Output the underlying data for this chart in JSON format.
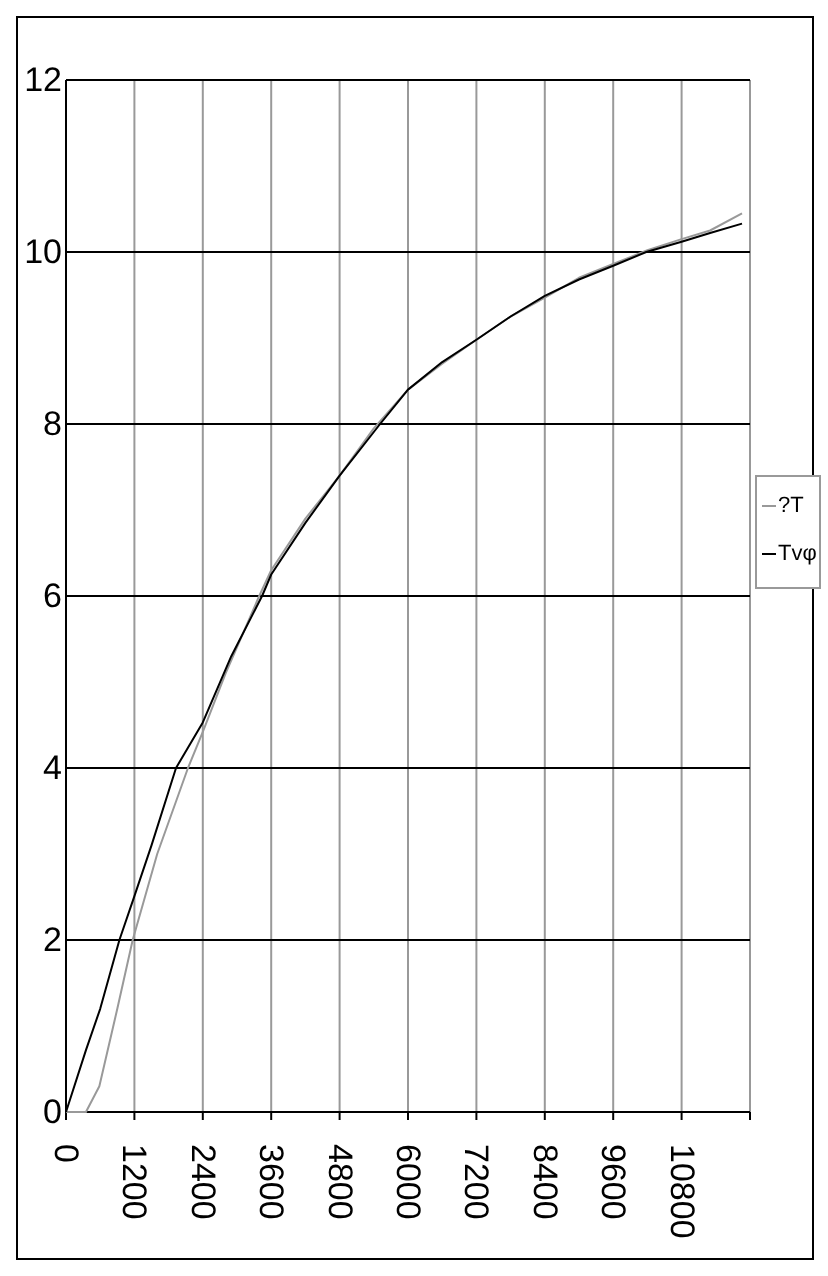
{
  "chart_data": {
    "type": "line",
    "xlim": [
      0,
      12000
    ],
    "xticks": [
      0,
      1200,
      2400,
      3600,
      4800,
      6000,
      7200,
      8400,
      9600,
      10800,
      {
        "value": 12000,
        "label": null
      }
    ],
    "ylim": [
      0,
      12
    ],
    "yticks": [
      0,
      2,
      4,
      6,
      8,
      10,
      12
    ],
    "grid": true,
    "legend": "right",
    "series": [
      {
        "name": "?T",
        "color": "#999999",
        "x": [
          0,
          350,
          585,
          900,
          1170,
          1600,
          2140,
          2400,
          2800,
          3390,
          3600,
          4200,
          4800,
          5400,
          6000,
          6600,
          7200,
          7800,
          8400,
          9000,
          9600,
          10200,
          10800,
          11300,
          11860
        ],
        "values": [
          0,
          0,
          0.3,
          1.2,
          2,
          3,
          4,
          4.42,
          5.1,
          6,
          6.3,
          6.9,
          7.4,
          7.95,
          8.4,
          8.7,
          8.98,
          9.25,
          9.47,
          9.7,
          9.86,
          10.02,
          10.15,
          10.25,
          10.45
        ]
      },
      {
        "name": "Tvφ",
        "color": "#000000",
        "x": [
          0,
          350,
          600,
          937,
          1200,
          1500,
          1930,
          2400,
          2900,
          3440,
          3600,
          4200,
          4800,
          5510,
          6000,
          6600,
          7200,
          7800,
          8400,
          9000,
          9600,
          10180,
          10800,
          11300,
          11860
        ],
        "values": [
          0,
          0.72,
          1.2,
          2,
          2.51,
          3.1,
          4,
          4.53,
          5.3,
          6,
          6.25,
          6.85,
          7.4,
          8,
          8.4,
          8.72,
          8.98,
          9.25,
          9.49,
          9.68,
          9.84,
          10,
          10.12,
          10.22,
          10.33
        ]
      }
    ]
  }
}
